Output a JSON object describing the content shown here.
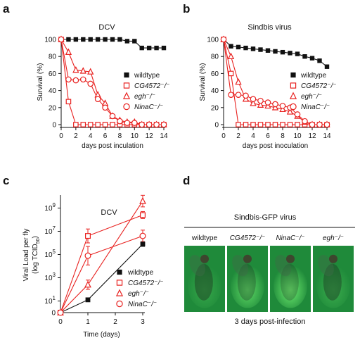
{
  "panel_letters": [
    "a",
    "b",
    "c",
    "d"
  ],
  "legend": {
    "entries": [
      {
        "key": "wildtype",
        "label": "wildtype",
        "color": "#111111",
        "marker": "filled-square",
        "italic": false
      },
      {
        "key": "cg4572",
        "label": "CG4572⁻/⁻",
        "color": "#e8211f",
        "marker": "open-square",
        "italic": true
      },
      {
        "key": "egh",
        "label": "egh⁻/⁻",
        "color": "#e8211f",
        "marker": "open-triangle",
        "italic": true
      },
      {
        "key": "ninac",
        "label": "NinaC⁻/⁻",
        "color": "#e8211f",
        "marker": "open-circle",
        "italic": true
      }
    ]
  },
  "panel_d": {
    "title": "Sindbis-GFP virus",
    "caption": "3 days post-infection",
    "columns": [
      {
        "label": "wildtype",
        "italic": false,
        "glow": 0.25
      },
      {
        "label": "CG4572⁻/⁻",
        "italic": true,
        "glow": 0.7
      },
      {
        "label": "NinaC⁻/⁻",
        "italic": true,
        "glow": 0.85
      },
      {
        "label": "egh⁻/⁻",
        "italic": true,
        "glow": 0.3
      }
    ],
    "colors": {
      "background": "#1f8a3a",
      "glow": "#7dff7a",
      "fly": "#1d3a22"
    }
  },
  "chart_data": [
    {
      "type": "line",
      "title": "DCV",
      "xlabel": "days post inculation",
      "ylabel": "Survival (%)",
      "xlim": [
        0,
        14
      ],
      "ylim": [
        0,
        100
      ],
      "xticks": [
        0,
        2,
        4,
        6,
        8,
        10,
        12,
        14
      ],
      "yticks": [
        0,
        20,
        40,
        60,
        80,
        100
      ],
      "grid": false,
      "legend_position": "right",
      "series": [
        {
          "name": "wildtype",
          "color": "#111111",
          "marker": "filled-square",
          "x": [
            0,
            1,
            2,
            3,
            4,
            5,
            6,
            7,
            8,
            9,
            10,
            11,
            12,
            13,
            14
          ],
          "y": [
            100,
            100,
            100,
            100,
            100,
            100,
            100,
            100,
            100,
            98,
            98,
            90,
            90,
            90,
            90
          ]
        },
        {
          "name": "CG4572⁻/⁻",
          "color": "#e8211f",
          "marker": "open-square",
          "x": [
            0,
            1,
            2,
            3,
            4,
            5,
            6,
            7,
            8,
            9,
            10,
            11,
            12,
            13,
            14
          ],
          "y": [
            100,
            27,
            0,
            0,
            0,
            0,
            0,
            0,
            0,
            0,
            0,
            0,
            0,
            0,
            0
          ]
        },
        {
          "name": "egh⁻/⁻",
          "color": "#e8211f",
          "marker": "open-triangle",
          "x": [
            0,
            1,
            2,
            3,
            4,
            5,
            6,
            7,
            8,
            9,
            10,
            11,
            12,
            13,
            14
          ],
          "y": [
            100,
            85,
            64,
            63,
            62,
            35,
            25,
            10,
            5,
            3,
            3,
            0,
            0,
            0,
            0
          ]
        },
        {
          "name": "NinaC⁻/⁻",
          "color": "#e8211f",
          "marker": "open-circle",
          "x": [
            0,
            1,
            2,
            3,
            4,
            5,
            6,
            7,
            8,
            9,
            10,
            11,
            12,
            13,
            14
          ],
          "y": [
            100,
            53,
            52,
            53,
            48,
            30,
            20,
            10,
            4,
            2,
            2,
            0,
            0,
            0,
            0
          ]
        }
      ]
    },
    {
      "type": "line",
      "title": "Sindbis virus",
      "xlabel": "days post inoculation",
      "ylabel": "Survival (%)",
      "xlim": [
        0,
        14
      ],
      "ylim": [
        0,
        100
      ],
      "xticks": [
        0,
        2,
        4,
        6,
        8,
        10,
        12,
        14
      ],
      "yticks": [
        0,
        20,
        40,
        60,
        80,
        100
      ],
      "grid": false,
      "legend_position": "right",
      "series": [
        {
          "name": "wildtype",
          "color": "#111111",
          "marker": "filled-square",
          "x": [
            0,
            1,
            2,
            3,
            4,
            5,
            6,
            7,
            8,
            9,
            10,
            11,
            12,
            13,
            14
          ],
          "y": [
            100,
            92,
            91,
            90,
            89,
            88,
            87,
            86,
            85,
            84,
            83,
            80,
            78,
            75,
            68
          ]
        },
        {
          "name": "CG4572⁻/⁻",
          "color": "#e8211f",
          "marker": "open-square",
          "x": [
            0,
            1,
            2,
            3,
            4,
            5,
            6,
            7,
            8,
            9,
            10,
            11,
            12,
            13,
            14
          ],
          "y": [
            100,
            60,
            0,
            0,
            0,
            0,
            0,
            0,
            0,
            0,
            0,
            0,
            0,
            0,
            0
          ]
        },
        {
          "name": "egh⁻/⁻",
          "color": "#e8211f",
          "marker": "open-triangle",
          "x": [
            0,
            1,
            2,
            3,
            4,
            5,
            6,
            7,
            8,
            9,
            10,
            11,
            12,
            13,
            14
          ],
          "y": [
            100,
            80,
            50,
            30,
            25,
            23,
            22,
            20,
            18,
            15,
            10,
            3,
            0,
            0,
            0
          ]
        },
        {
          "name": "NinaC⁻/⁻",
          "color": "#e8211f",
          "marker": "open-circle",
          "x": [
            0,
            1,
            2,
            3,
            4,
            5,
            6,
            7,
            8,
            9,
            10,
            11,
            12,
            13,
            14
          ],
          "y": [
            100,
            35,
            35,
            34,
            30,
            28,
            26,
            24,
            22,
            20,
            12,
            4,
            0,
            0,
            0
          ]
        }
      ]
    },
    {
      "type": "line",
      "title": "DCV",
      "xlabel": "Time (days)",
      "ylabel": "Viral Load per fly",
      "ylabel2": "(log TCID",
      "ylabel2_sub": "50",
      "ylabel2_end": ")",
      "xlim": [
        0,
        3
      ],
      "ylim_log10": [
        0,
        10
      ],
      "xticks": [
        0,
        1,
        2,
        3
      ],
      "yticks": [
        {
          "base": "10",
          "exp": "9",
          "value": 9
        },
        {
          "base": "10",
          "exp": "7",
          "value": 7
        },
        {
          "base": "10",
          "exp": "5",
          "value": 5
        },
        {
          "base": "10",
          "exp": "3",
          "value": 3
        },
        {
          "base": "10",
          "exp": "1",
          "value": 1
        },
        {
          "base": "0",
          "exp": "",
          "value": 0
        }
      ],
      "grid": false,
      "legend_position": "bottom-right",
      "series": [
        {
          "name": "wildtype",
          "color": "#111111",
          "marker": "filled-square",
          "x": [
            0,
            1,
            3
          ],
          "y_log10": [
            0,
            1.1,
            5.9
          ],
          "err": [
            0,
            0,
            0.2
          ]
        },
        {
          "name": "CG4572⁻/⁻",
          "color": "#e8211f",
          "marker": "open-square",
          "x": [
            0,
            1,
            3
          ],
          "y_log10": [
            0,
            6.6,
            8.4
          ],
          "err": [
            0,
            0.6,
            0.3
          ]
        },
        {
          "name": "egh⁻/⁻",
          "color": "#e8211f",
          "marker": "open-triangle",
          "x": [
            0,
            1,
            3
          ],
          "y_log10": [
            0,
            2.4,
            9.6
          ],
          "err": [
            0,
            0.4,
            0.5
          ]
        },
        {
          "name": "NinaC⁻/⁻",
          "color": "#e8211f",
          "marker": "open-circle",
          "x": [
            0,
            1,
            3
          ],
          "y_log10": [
            0,
            4.9,
            6.6
          ],
          "err": [
            0,
            0.8,
            0.5
          ]
        }
      ]
    }
  ]
}
